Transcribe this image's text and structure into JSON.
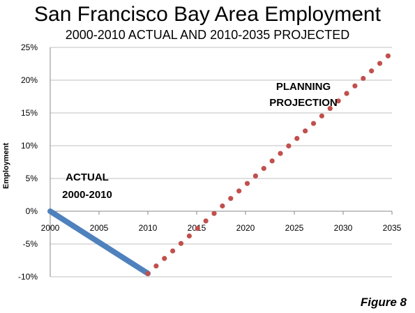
{
  "chart_data": {
    "type": "line",
    "title": "San Francisco Bay Area Employment",
    "subtitle": "2000-2010 ACTUAL AND 2010-2035 PROJECTED",
    "ylabel": "Employment",
    "xlabel": "",
    "xlim": [
      2000,
      2035
    ],
    "ylim": [
      -10,
      25
    ],
    "x_ticks": [
      2000,
      2005,
      2010,
      2015,
      2020,
      2025,
      2030,
      2035
    ],
    "y_ticks": [
      "-10%",
      "-5%",
      "0%",
      "5%",
      "10%",
      "15%",
      "20%",
      "25%"
    ],
    "y_tick_values": [
      -10,
      -5,
      0,
      5,
      10,
      15,
      20,
      25
    ],
    "grid": true,
    "series": [
      {
        "name": "ACTUAL 2000-2010",
        "style": "solid",
        "color": "#4f81bd",
        "x": [
          2000,
          2010
        ],
        "y": [
          0,
          -9.5
        ]
      },
      {
        "name": "PLANNING PROJECTION",
        "style": "dotted",
        "color": "#c0504d",
        "x": [
          2010,
          2034.6
        ],
        "y": [
          -9.5,
          23.7
        ],
        "count": 30
      }
    ],
    "annotations": [
      {
        "id": "actual",
        "lines": [
          "ACTUAL",
          "2000-2010"
        ]
      },
      {
        "id": "planning",
        "lines": [
          "PLANNING",
          "PROJECTION"
        ]
      }
    ]
  },
  "figure_label": "Figure 8"
}
